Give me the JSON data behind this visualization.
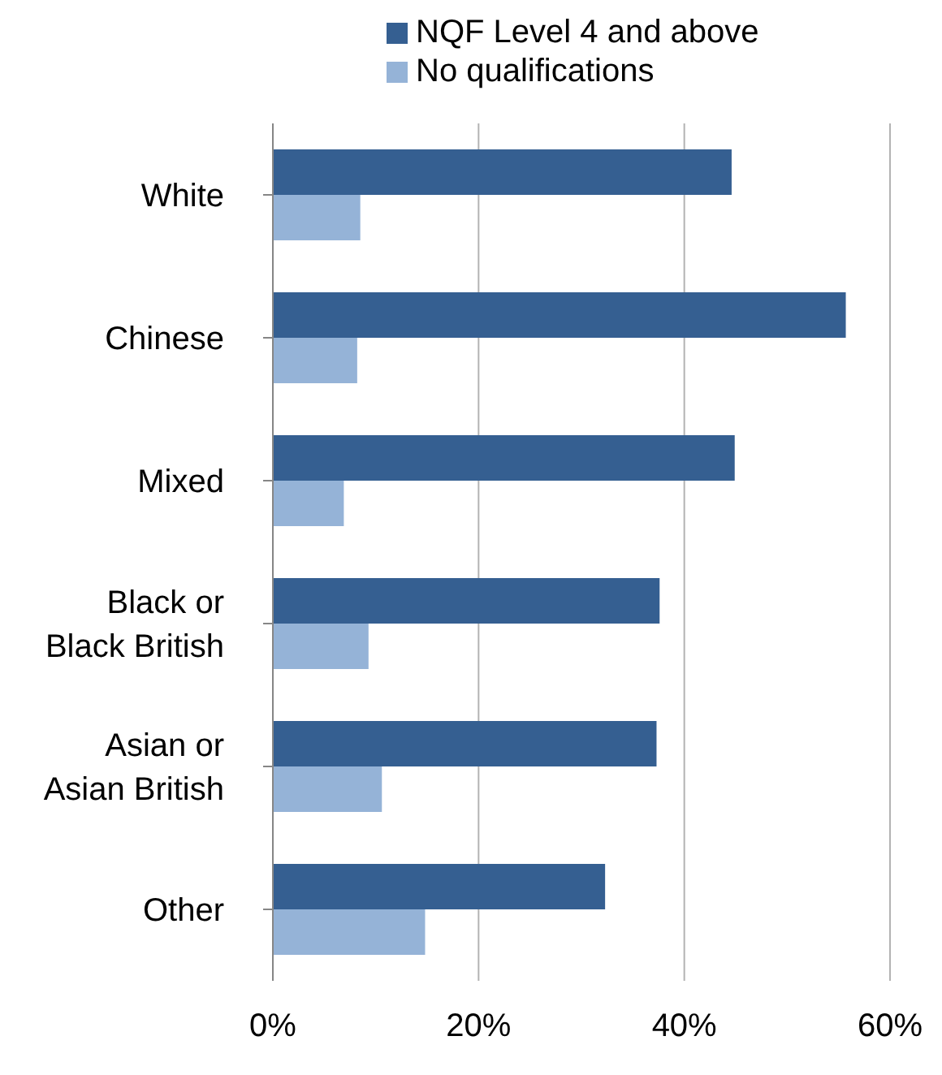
{
  "chart_data": {
    "type": "bar",
    "orientation": "horizontal",
    "categories": [
      "White",
      "Chinese",
      "Mixed",
      "Black or Black British",
      "Asian or Asian British",
      "Other"
    ],
    "series": [
      {
        "name": "NQF Level 4 and above",
        "color": "#355f91",
        "values": [
          44.6,
          55.7,
          44.9,
          37.6,
          37.3,
          32.3
        ]
      },
      {
        "name": "No qualifications",
        "color": "#95b3d7",
        "values": [
          8.5,
          8.2,
          6.9,
          9.3,
          10.6,
          14.8
        ]
      }
    ],
    "xlim": [
      0,
      60
    ],
    "xticks": [
      {
        "value": 0,
        "label": "0%"
      },
      {
        "value": 20,
        "label": "20%"
      },
      {
        "value": 40,
        "label": "40%"
      },
      {
        "value": 60,
        "label": "60%"
      }
    ],
    "grid": "x",
    "legend": "top"
  }
}
